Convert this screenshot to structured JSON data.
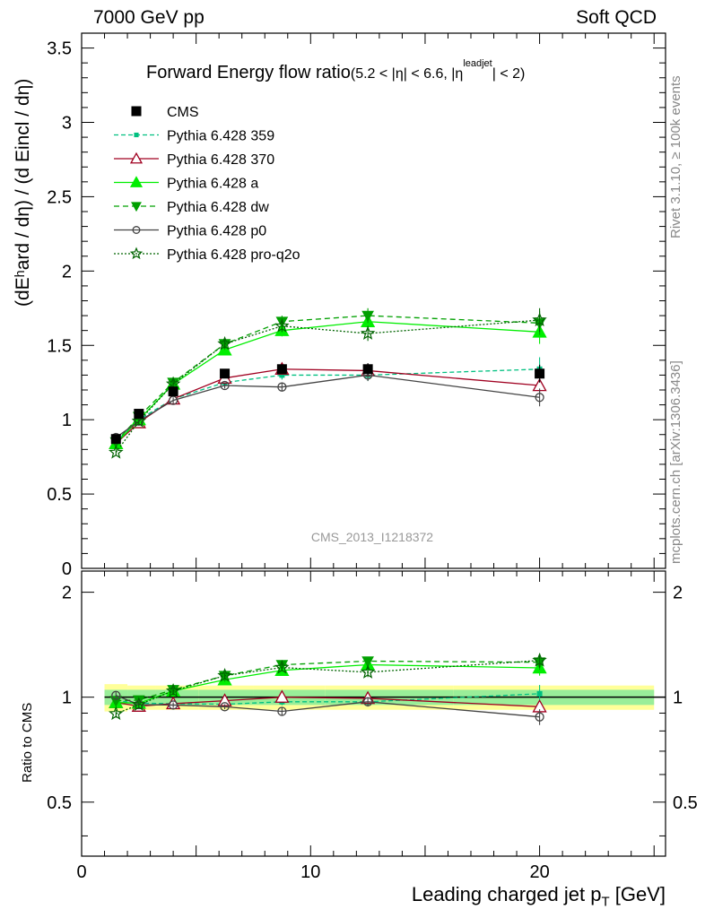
{
  "header": {
    "left": "7000 GeV pp",
    "right": "Soft QCD"
  },
  "side_labels": {
    "rivet": "Rivet 3.1.10, ≥ 100k events",
    "mcplots": "mcplots.cern.ch [arXiv:1306.3436]"
  },
  "watermark": "CMS_2013_I1218372",
  "axes": {
    "xlabel": "Leading charged jet p",
    "xlabel_sub": "T",
    "xlabel_unit": " [GeV]",
    "ylabel_main": "(dEʰard / dη) / (d Eincl / dη)",
    "ylabel_ratio": "Ratio to CMS"
  },
  "chart_data": {
    "type": "line",
    "title_main": "Forward Energy flow ratio",
    "title_sub": "(5.2 < |η| < 6.6, |η",
    "title_sup": "leadjet",
    "title_end": "| < 2)",
    "xlim": [
      0,
      25.5
    ],
    "ylim_main": [
      0,
      3.6
    ],
    "ylim_ratio": [
      0.35,
      2.3
    ],
    "x_ticks": [
      0,
      10,
      20
    ],
    "y_ticks_main": [
      0,
      0.5,
      1,
      1.5,
      2,
      2.5,
      3,
      3.5
    ],
    "y_ticks_main_labels": [
      "0",
      "0.5",
      "1",
      "1.5",
      "2",
      "2.5",
      "3",
      "3.5"
    ],
    "y_ticks_ratio": [
      0.5,
      1,
      2
    ],
    "y_ticks_ratio_labels": [
      "0.5",
      "1",
      "2"
    ],
    "cms": {
      "name": "CMS",
      "x": [
        1.5,
        2.5,
        4.0,
        6.25,
        8.75,
        12.5,
        20.0
      ],
      "y": [
        0.87,
        1.04,
        1.19,
        1.31,
        1.34,
        1.34,
        1.31
      ],
      "err": [
        0.03,
        0.03,
        0.03,
        0.03,
        0.03,
        0.04,
        0.06
      ],
      "band_inner": [
        0.05,
        0.05,
        0.05,
        0.05,
        0.05,
        0.05,
        0.05
      ],
      "band_outer": [
        0.09,
        0.08,
        0.08,
        0.08,
        0.08,
        0.08,
        0.08
      ]
    },
    "series": [
      {
        "name": "Pythia 6.428 359",
        "color": "#00c080",
        "dash": "5,3",
        "marker": "square-small",
        "x": [
          1.5,
          2.5,
          4.0,
          6.25,
          8.75,
          12.5,
          20.0
        ],
        "y": [
          0.85,
          1.0,
          1.14,
          1.25,
          1.3,
          1.3,
          1.34
        ],
        "err": [
          0.02,
          0.02,
          0.02,
          0.02,
          0.03,
          0.04,
          0.08
        ]
      },
      {
        "name": "Pythia 6.428 370",
        "color": "#a00020",
        "dash": "",
        "marker": "triangle-open",
        "x": [
          1.5,
          2.5,
          4.0,
          6.25,
          8.75,
          12.5,
          20.0
        ],
        "y": [
          0.84,
          0.98,
          1.14,
          1.28,
          1.34,
          1.33,
          1.23
        ],
        "err": [
          0.02,
          0.02,
          0.02,
          0.02,
          0.03,
          0.04,
          0.05
        ]
      },
      {
        "name": "Pythia 6.428 a",
        "color": "#00ee00",
        "dash": "",
        "marker": "triangle-filled",
        "x": [
          1.5,
          2.5,
          4.0,
          6.25,
          8.75,
          12.5,
          20.0
        ],
        "y": [
          0.84,
          1.0,
          1.24,
          1.47,
          1.6,
          1.66,
          1.59
        ],
        "err": [
          0.02,
          0.02,
          0.03,
          0.03,
          0.04,
          0.05,
          0.08
        ]
      },
      {
        "name": "Pythia 6.428 dw",
        "color": "#00a000",
        "dash": "6,4",
        "marker": "triangle-down",
        "x": [
          1.5,
          2.5,
          4.0,
          6.25,
          8.75,
          12.5,
          20.0
        ],
        "y": [
          0.85,
          1.02,
          1.25,
          1.51,
          1.66,
          1.7,
          1.65
        ],
        "err": [
          0.02,
          0.02,
          0.03,
          0.03,
          0.04,
          0.05,
          0.08
        ]
      },
      {
        "name": "Pythia 6.428 p0",
        "color": "#444444",
        "dash": "",
        "marker": "circle-open",
        "x": [
          1.5,
          2.5,
          4.0,
          6.25,
          8.75,
          12.5,
          20.0
        ],
        "y": [
          0.88,
          0.99,
          1.13,
          1.23,
          1.22,
          1.3,
          1.15
        ],
        "err": [
          0.02,
          0.02,
          0.02,
          0.02,
          0.03,
          0.04,
          0.06
        ]
      },
      {
        "name": "Pythia 6.428 pro-q2o",
        "color": "#006400",
        "dash": "2,2",
        "marker": "star",
        "x": [
          1.5,
          2.5,
          4.0,
          6.25,
          8.75,
          12.5,
          20.0
        ],
        "y": [
          0.78,
          0.99,
          1.24,
          1.51,
          1.63,
          1.58,
          1.67
        ],
        "err": [
          0.02,
          0.02,
          0.03,
          0.03,
          0.04,
          0.05,
          0.08
        ]
      }
    ]
  }
}
